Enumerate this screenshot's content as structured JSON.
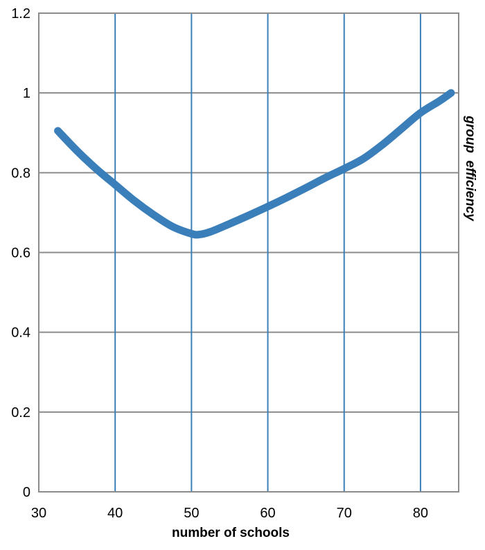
{
  "colors": {
    "series": "#3a7fb9",
    "vertical_gridlines": "#3a7fb9",
    "horizontal_gridlines": "#8c8c8c",
    "frame": "#8c8c8c"
  },
  "chart_data": {
    "type": "line",
    "title": "",
    "xlabel": "number of schools",
    "ylabel": "group  efficiency",
    "xlim": [
      30,
      85
    ],
    "ylim": [
      0,
      1.2
    ],
    "x_ticks": [
      30,
      40,
      50,
      60,
      70,
      80
    ],
    "x_tick_labels": [
      "30",
      "40",
      "50",
      "60",
      "70",
      "80"
    ],
    "y_ticks": [
      0,
      0.2,
      0.4,
      0.6,
      0.8,
      1.0,
      1.2
    ],
    "y_tick_labels": [
      "0",
      "0.2",
      "0.4",
      "0.6",
      "0.8",
      "1",
      "1.2"
    ],
    "grid": true,
    "legend": "none",
    "series": [
      {
        "x": [
          32.5,
          35,
          37.5,
          40,
          42.5,
          45,
          47.5,
          50,
          51,
          52.5,
          55,
          57.5,
          60,
          62.5,
          65,
          67.5,
          70,
          72.5,
          75,
          77.5,
          80,
          82.5,
          84
        ],
        "y": [
          0.905,
          0.855,
          0.81,
          0.77,
          0.73,
          0.695,
          0.665,
          0.647,
          0.645,
          0.652,
          0.672,
          0.693,
          0.715,
          0.738,
          0.762,
          0.787,
          0.81,
          0.835,
          0.87,
          0.91,
          0.95,
          0.98,
          1.0
        ]
      }
    ]
  }
}
